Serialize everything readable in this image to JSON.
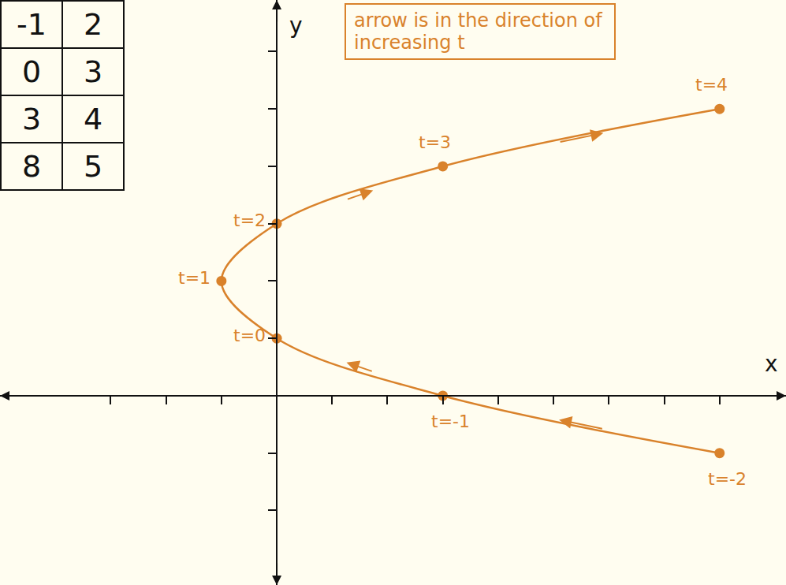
{
  "chart_data": {
    "type": "parametric",
    "x_label": "x",
    "y_label": "y",
    "x": [
      8,
      3,
      0,
      -1,
      0,
      3,
      8
    ],
    "y": [
      -1,
      0,
      1,
      2,
      3,
      4,
      5
    ],
    "point_labels": [
      "t=-2",
      "t=-1",
      "t=0",
      "t=1",
      "t=2",
      "t=3",
      "t=4"
    ],
    "color": "#d9822b",
    "marker": "circle",
    "line_style": "solid",
    "xlim": [
      -5,
      9.2
    ],
    "ylim": [
      -3.3,
      6.9
    ],
    "xticks": [
      -3,
      -2,
      -1,
      0,
      1,
      2,
      3,
      4,
      5,
      6,
      7,
      8
    ],
    "yticks": [
      -2,
      -1,
      0,
      1,
      2,
      3,
      4,
      5,
      6
    ],
    "tick_labels": false,
    "grid": false,
    "annotations": [
      "arrow is in the direction of increasing t"
    ]
  },
  "table": {
    "rows": [
      [
        -1,
        2
      ],
      [
        0,
        3
      ],
      [
        3,
        4
      ],
      [
        8,
        5
      ]
    ]
  }
}
